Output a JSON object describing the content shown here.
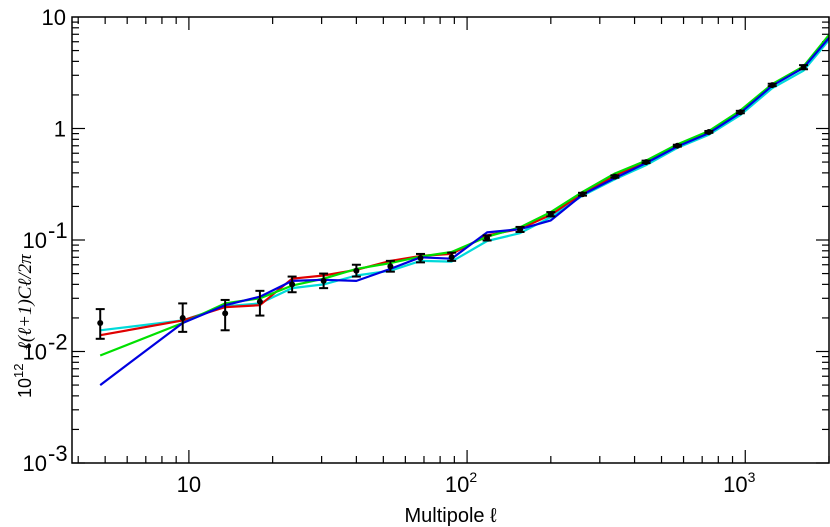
{
  "chart_data": {
    "type": "line",
    "xscale": "log",
    "yscale": "log",
    "xlim": [
      3.8,
      2000
    ],
    "ylim": [
      0.001,
      10
    ],
    "xlabel": "Multipole ℓ",
    "ylabel_prefix": "10",
    "ylabel_prefix_exp": "12",
    "ylabel": "ℓ(ℓ+1)Cℓ/2π",
    "x_ticks": [
      {
        "value": 10,
        "base": "10",
        "exp": ""
      },
      {
        "value": 100,
        "base": "10",
        "exp": "2"
      },
      {
        "value": 1000,
        "base": "10",
        "exp": "3"
      }
    ],
    "y_ticks": [
      {
        "value": 0.001,
        "base": "10",
        "exp": "-3"
      },
      {
        "value": 0.01,
        "base": "10",
        "exp": "-2"
      },
      {
        "value": 0.1,
        "base": "10",
        "exp": "-1"
      },
      {
        "value": 1,
        "base": "1",
        "exp": ""
      },
      {
        "value": 10,
        "base": "10",
        "exp": ""
      }
    ],
    "data_points": {
      "x": [
        4.8,
        9.5,
        13.5,
        18,
        23.5,
        30.5,
        40,
        53,
        68,
        88,
        118,
        155,
        200,
        260,
        340,
        440,
        570,
        740,
        960,
        1250,
        1620
      ],
      "y": [
        0.018,
        0.02,
        0.022,
        0.028,
        0.04,
        0.043,
        0.053,
        0.058,
        0.069,
        0.07,
        0.104,
        0.124,
        0.17,
        0.257,
        0.37,
        0.5,
        0.7,
        0.93,
        1.4,
        2.45,
        3.55
      ],
      "ylow": [
        0.013,
        0.015,
        0.0155,
        0.021,
        0.034,
        0.037,
        0.047,
        0.052,
        0.063,
        0.065,
        0.099,
        0.118,
        0.163,
        0.25,
        0.362,
        0.49,
        0.688,
        0.915,
        1.37,
        2.4,
        3.4
      ],
      "yhigh": [
        0.024,
        0.027,
        0.029,
        0.035,
        0.047,
        0.05,
        0.06,
        0.065,
        0.075,
        0.077,
        0.11,
        0.131,
        0.178,
        0.265,
        0.38,
        0.515,
        0.715,
        0.95,
        1.44,
        2.52,
        3.7
      ]
    },
    "series": [
      {
        "color": "#00dada",
        "x": [
          4.8,
          9.5,
          13.5,
          18,
          23.5,
          30.5,
          40,
          53,
          68,
          88,
          118,
          155,
          200,
          260,
          340,
          440,
          570,
          740,
          960,
          1250,
          1620,
          2000
        ],
        "y": [
          0.0155,
          0.019,
          0.0255,
          0.027,
          0.037,
          0.04,
          0.048,
          0.053,
          0.065,
          0.064,
          0.098,
          0.115,
          0.16,
          0.25,
          0.35,
          0.47,
          0.67,
          0.88,
          1.32,
          2.3,
          3.3,
          6.2
        ]
      },
      {
        "color": "#e00000",
        "x": [
          4.8,
          9.5,
          13.5,
          18,
          23.5,
          30.5,
          40,
          53,
          68,
          88,
          118,
          155,
          200,
          260,
          340,
          440,
          570,
          740,
          960,
          1250,
          1620,
          2000
        ],
        "y": [
          0.014,
          0.019,
          0.025,
          0.026,
          0.045,
          0.048,
          0.054,
          0.065,
          0.072,
          0.075,
          0.11,
          0.126,
          0.168,
          0.262,
          0.38,
          0.505,
          0.71,
          0.94,
          1.42,
          2.48,
          3.6,
          6.7
        ]
      },
      {
        "color": "#00e000",
        "x": [
          4.8,
          9.5,
          13.5,
          18,
          23.5,
          30.5,
          40,
          53,
          68,
          88,
          118,
          155,
          200,
          260,
          340,
          440,
          570,
          740,
          960,
          1250,
          1620,
          2000
        ],
        "y": [
          0.0092,
          0.018,
          0.027,
          0.03,
          0.039,
          0.045,
          0.055,
          0.062,
          0.071,
          0.078,
          0.107,
          0.13,
          0.178,
          0.27,
          0.395,
          0.515,
          0.72,
          0.95,
          1.45,
          2.5,
          3.6,
          6.9
        ]
      },
      {
        "color": "#0000e0",
        "x": [
          4.8,
          9.5,
          13.5,
          18,
          23.5,
          30.5,
          40,
          53,
          68,
          88,
          118,
          155,
          200,
          260,
          340,
          440,
          570,
          740,
          960,
          1250,
          1620,
          2000
        ],
        "y": [
          0.005,
          0.018,
          0.026,
          0.031,
          0.043,
          0.044,
          0.043,
          0.055,
          0.07,
          0.068,
          0.117,
          0.125,
          0.15,
          0.255,
          0.36,
          0.49,
          0.69,
          0.91,
          1.38,
          2.42,
          3.5,
          6.5
        ]
      }
    ]
  }
}
